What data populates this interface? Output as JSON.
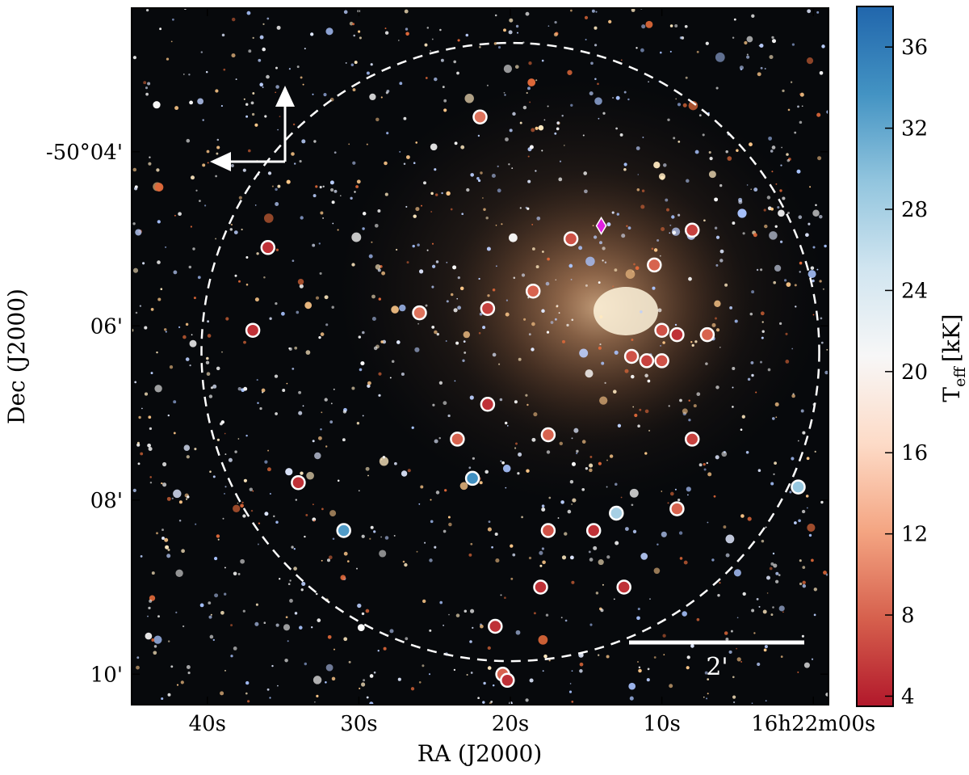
{
  "chart_data": {
    "type": "scatter",
    "x_axis": {
      "label": "RA (J2000)",
      "ticks": [
        {
          "value": 40,
          "label": "40s"
        },
        {
          "value": 30,
          "label": "30s"
        },
        {
          "value": 20,
          "label": "20s"
        },
        {
          "value": 10,
          "label": "10s"
        },
        {
          "value": 0,
          "label": "16h22m00s"
        }
      ],
      "range_seconds": [
        45,
        -1
      ],
      "reversed": true
    },
    "y_axis": {
      "label": "Dec (J2000)",
      "ticks": [
        {
          "value": 4,
          "label": "-50°04'"
        },
        {
          "value": 6,
          "label": "06'"
        },
        {
          "value": 8,
          "label": "08'"
        },
        {
          "value": 10,
          "label": "10'"
        }
      ],
      "range_arcmin_south": [
        2.35,
        10.35
      ]
    },
    "colorbar": {
      "label_main": "T",
      "label_sub": "eff",
      "label_unit": "[kK]",
      "ticks": [
        4,
        8,
        12,
        16,
        20,
        24,
        28,
        32,
        36
      ],
      "range": [
        3.5,
        38
      ],
      "colors": [
        "#b2182b",
        "#d6604d",
        "#f4a582",
        "#fddbc7",
        "#f7f7f7",
        "#d1e5f0",
        "#92c5de",
        "#4393c3",
        "#2166ac"
      ]
    },
    "scale_bar": {
      "label": "2'"
    },
    "field_circle": {
      "center_ra_s": 20.0,
      "center_dec_arcmin": 6.3,
      "radius_arcmin": 3.55
    },
    "compass": {
      "directions": [
        "N",
        "E"
      ]
    },
    "special_marker": {
      "ra_s": 14.0,
      "dec_arcmin": 4.85,
      "color": "#e020e0",
      "shape": "diamond"
    },
    "points": [
      {
        "ra_s": 22.0,
        "dec_arcmin": 3.6,
        "teff": 9
      },
      {
        "ra_s": 16.0,
        "dec_arcmin": 5.0,
        "teff": 7
      },
      {
        "ra_s": 8.0,
        "dec_arcmin": 4.9,
        "teff": 6
      },
      {
        "ra_s": 36.0,
        "dec_arcmin": 5.1,
        "teff": 5
      },
      {
        "ra_s": 10.5,
        "dec_arcmin": 5.3,
        "teff": 8
      },
      {
        "ra_s": 18.5,
        "dec_arcmin": 5.6,
        "teff": 8
      },
      {
        "ra_s": 26.0,
        "dec_arcmin": 5.85,
        "teff": 9
      },
      {
        "ra_s": 21.5,
        "dec_arcmin": 5.8,
        "teff": 6
      },
      {
        "ra_s": 37.0,
        "dec_arcmin": 6.05,
        "teff": 5
      },
      {
        "ra_s": 10.0,
        "dec_arcmin": 6.05,
        "teff": 7
      },
      {
        "ra_s": 9.0,
        "dec_arcmin": 6.1,
        "teff": 5
      },
      {
        "ra_s": 7.0,
        "dec_arcmin": 6.1,
        "teff": 8
      },
      {
        "ra_s": 12.0,
        "dec_arcmin": 6.35,
        "teff": 7
      },
      {
        "ra_s": 11.0,
        "dec_arcmin": 6.4,
        "teff": 6
      },
      {
        "ra_s": 10.0,
        "dec_arcmin": 6.4,
        "teff": 7
      },
      {
        "ra_s": 21.5,
        "dec_arcmin": 6.9,
        "teff": 5
      },
      {
        "ra_s": 17.5,
        "dec_arcmin": 7.25,
        "teff": 8
      },
      {
        "ra_s": 23.5,
        "dec_arcmin": 7.3,
        "teff": 8
      },
      {
        "ra_s": 8.0,
        "dec_arcmin": 7.3,
        "teff": 6
      },
      {
        "ra_s": 22.5,
        "dec_arcmin": 7.75,
        "teff": 34
      },
      {
        "ra_s": 34.0,
        "dec_arcmin": 7.8,
        "teff": 5
      },
      {
        "ra_s": 1.0,
        "dec_arcmin": 7.85,
        "teff": 29
      },
      {
        "ra_s": 9.0,
        "dec_arcmin": 8.1,
        "teff": 8
      },
      {
        "ra_s": 13.0,
        "dec_arcmin": 8.15,
        "teff": 28
      },
      {
        "ra_s": 31.0,
        "dec_arcmin": 8.35,
        "teff": 33
      },
      {
        "ra_s": 17.5,
        "dec_arcmin": 8.35,
        "teff": 7
      },
      {
        "ra_s": 14.5,
        "dec_arcmin": 8.35,
        "teff": 5
      },
      {
        "ra_s": 18.0,
        "dec_arcmin": 9.0,
        "teff": 5
      },
      {
        "ra_s": 12.5,
        "dec_arcmin": 9.0,
        "teff": 5
      },
      {
        "ra_s": 21.0,
        "dec_arcmin": 9.45,
        "teff": 5
      },
      {
        "ra_s": 20.5,
        "dec_arcmin": 10.0,
        "teff": 8
      },
      {
        "ra_s": 20.2,
        "dec_arcmin": 10.07,
        "teff": 5
      }
    ]
  }
}
